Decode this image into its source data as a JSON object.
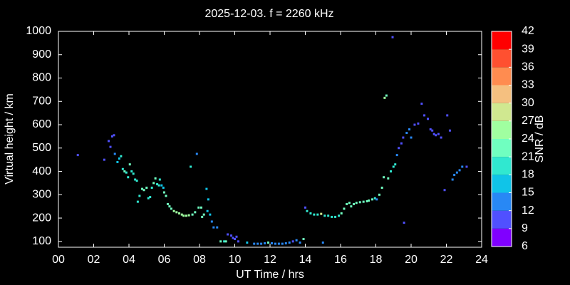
{
  "chart_data": {
    "type": "scatter",
    "title": "2025-12-03. f = 2260 kHz",
    "x_label": "UT Time / hrs",
    "y_label": "Virtual height / km",
    "colorbar_label": "SNR / dB",
    "xlim": [
      0,
      24
    ],
    "ylim": [
      75,
      1000
    ],
    "xticks": [
      {
        "value": 0,
        "label": "00"
      },
      {
        "value": 2,
        "label": "02"
      },
      {
        "value": 4,
        "label": "04"
      },
      {
        "value": 6,
        "label": "06"
      },
      {
        "value": 8,
        "label": "08"
      },
      {
        "value": 10,
        "label": "10"
      },
      {
        "value": 12,
        "label": "12"
      },
      {
        "value": 14,
        "label": "14"
      },
      {
        "value": 16,
        "label": "16"
      },
      {
        "value": 18,
        "label": "18"
      },
      {
        "value": 20,
        "label": "20"
      },
      {
        "value": 22,
        "label": "22"
      },
      {
        "value": 24,
        "label": "24"
      }
    ],
    "yticks": [
      100,
      200,
      300,
      400,
      500,
      600,
      700,
      800,
      900,
      1000
    ],
    "colorbar_ticks": [
      6,
      9,
      12,
      15,
      18,
      21,
      24,
      27,
      30,
      33,
      36,
      39,
      42
    ],
    "colorbar_colors": [
      "#8000ff",
      "#5050ff",
      "#2888f5",
      "#10c4e8",
      "#30e8d0",
      "#70ffc0",
      "#a0ffa0",
      "#d0e890",
      "#f5c080",
      "#ff8c50",
      "#ff5030",
      "#ff0000"
    ],
    "x": [
      1.1,
      2.6,
      2.85,
      2.95,
      3.05,
      3.15,
      3.2,
      3.35,
      3.45,
      3.55,
      3.65,
      3.75,
      3.85,
      3.95,
      4.05,
      4.15,
      4.25,
      4.35,
      4.45,
      4.5,
      4.6,
      4.75,
      4.85,
      5.0,
      5.1,
      5.2,
      5.3,
      5.4,
      5.5,
      5.6,
      5.7,
      5.75,
      5.85,
      5.95,
      6.0,
      6.1,
      6.2,
      6.3,
      6.4,
      6.55,
      6.7,
      6.85,
      7.0,
      7.1,
      7.25,
      7.4,
      7.5,
      7.6,
      7.75,
      7.85,
      7.95,
      8.1,
      8.15,
      8.25,
      8.4,
      8.5,
      8.45,
      8.6,
      8.7,
      8.8,
      9.0,
      9.2,
      9.4,
      9.5,
      9.6,
      9.8,
      9.9,
      10.0,
      10.1,
      10.2,
      10.7,
      11.1,
      11.3,
      11.5,
      11.7,
      11.9,
      12.1,
      12.3,
      12.5,
      12.7,
      12.9,
      13.1,
      13.3,
      13.5,
      13.7,
      13.9,
      14.0,
      14.1,
      14.3,
      14.5,
      14.7,
      14.9,
      15.0,
      15.1,
      15.3,
      15.5,
      15.7,
      15.9,
      16.05,
      16.2,
      16.35,
      16.5,
      16.6,
      16.75,
      16.9,
      17.1,
      17.3,
      17.5,
      17.6,
      17.8,
      17.95,
      18.05,
      18.2,
      18.35,
      18.45,
      18.5,
      18.6,
      18.7,
      18.85,
      18.95,
      19.0,
      19.1,
      19.2,
      19.3,
      19.45,
      19.55,
      19.6,
      19.75,
      19.9,
      20.0,
      20.2,
      20.4,
      20.6,
      20.75,
      20.95,
      21.1,
      21.2,
      21.3,
      21.4,
      21.55,
      21.7,
      21.9,
      22.05,
      22.2,
      22.35,
      22.45,
      22.6,
      22.75,
      22.9,
      23.15
    ],
    "y": [
      470,
      450,
      530,
      505,
      550,
      555,
      475,
      440,
      455,
      465,
      410,
      400,
      395,
      375,
      430,
      400,
      390,
      365,
      360,
      270,
      295,
      325,
      320,
      330,
      285,
      290,
      330,
      350,
      370,
      345,
      340,
      365,
      340,
      330,
      310,
      295,
      260,
      250,
      240,
      230,
      225,
      220,
      215,
      210,
      210,
      212,
      420,
      215,
      225,
      475,
      245,
      245,
      205,
      215,
      325,
      280,
      230,
      215,
      185,
      160,
      160,
      100,
      100,
      100,
      130,
      125,
      115,
      110,
      120,
      100,
      95,
      90,
      90,
      90,
      92,
      95,
      92,
      90,
      90,
      90,
      92,
      95,
      100,
      105,
      95,
      110,
      245,
      230,
      220,
      215,
      215,
      218,
      95,
      210,
      210,
      205,
      205,
      210,
      220,
      240,
      260,
      265,
      250,
      260,
      265,
      268,
      270,
      272,
      275,
      280,
      285,
      280,
      300,
      330,
      375,
      715,
      725,
      370,
      400,
      975,
      420,
      430,
      470,
      500,
      520,
      545,
      180,
      565,
      580,
      545,
      600,
      605,
      690,
      640,
      625,
      580,
      575,
      560,
      555,
      560,
      545,
      320,
      640,
      575,
      365,
      385,
      395,
      405,
      420,
      420
    ],
    "snr": [
      10,
      10,
      10,
      10,
      10,
      10,
      13,
      16,
      16,
      19,
      19,
      22,
      19,
      19,
      22,
      19,
      19,
      19,
      19,
      19,
      19,
      22,
      22,
      22,
      19,
      19,
      19,
      22,
      22,
      19,
      19,
      19,
      16,
      16,
      22,
      22,
      22,
      22,
      22,
      25,
      25,
      25,
      25,
      25,
      25,
      25,
      19,
      22,
      22,
      13,
      22,
      22,
      22,
      22,
      16,
      16,
      16,
      16,
      13,
      13,
      13,
      22,
      19,
      22,
      10,
      10,
      10,
      10,
      10,
      10,
      16,
      13,
      13,
      13,
      13,
      22,
      13,
      13,
      13,
      13,
      13,
      13,
      10,
      13,
      13,
      22,
      10,
      19,
      19,
      19,
      19,
      28,
      13,
      19,
      19,
      19,
      19,
      19,
      22,
      22,
      22,
      22,
      22,
      22,
      22,
      22,
      22,
      22,
      22,
      22,
      19,
      13,
      22,
      22,
      22,
      25,
      22,
      22,
      19,
      10,
      19,
      19,
      13,
      10,
      10,
      10,
      10,
      13,
      13,
      13,
      10,
      10,
      10,
      10,
      10,
      10,
      10,
      10,
      10,
      10,
      10,
      10,
      10,
      10,
      13,
      13,
      13,
      13,
      13,
      10
    ]
  }
}
